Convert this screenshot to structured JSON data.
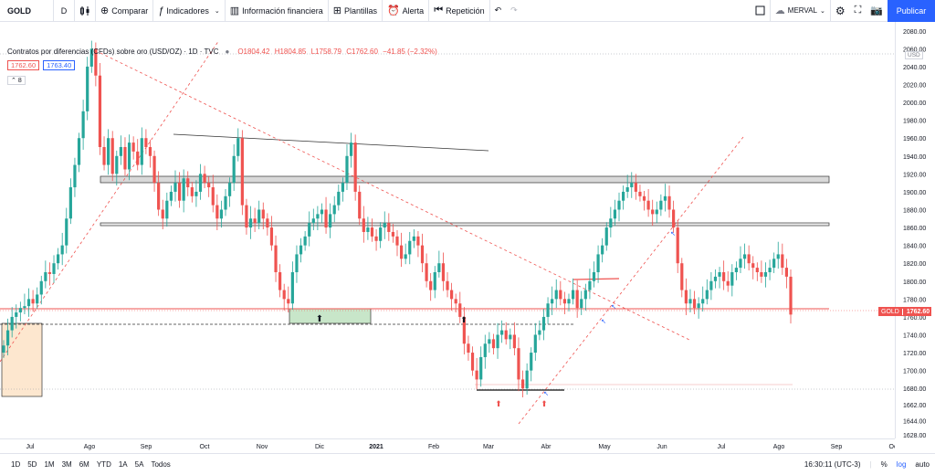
{
  "toolbar": {
    "symbol": "GOLD",
    "interval": "D",
    "compare": "Comparar",
    "indicators": "Indicadores",
    "financials": "Información financiera",
    "templates": "Plantillas",
    "alert": "Alerta",
    "replay": "Repetición",
    "layout_name": "MERVAL",
    "publish": "Publicar"
  },
  "legend": {
    "title": "Contratos por diferencias (CFDs) sobre oro (USD/OZ) · 1D · TVC",
    "open": "O1804.42",
    "high": "H1804.85",
    "low": "L1758.79",
    "close": "C1762.60",
    "change": "−41.85 (−2.32%)",
    "bid": "1762.60",
    "ask": "1763.40",
    "collapse": "8"
  },
  "price_axis": {
    "currency": "USD",
    "ticks": [
      "2080.00",
      "2060.00",
      "2040.00",
      "2020.00",
      "2000.00",
      "1980.00",
      "1960.00",
      "1940.00",
      "1920.00",
      "1900.00",
      "1880.00",
      "1860.00",
      "1840.00",
      "1820.00",
      "1800.00",
      "1780.00",
      "1760.00",
      "1740.00",
      "1720.00",
      "1700.00",
      "1680.00",
      "1662.00",
      "1644.00",
      "1628.00"
    ],
    "last_symbol": "GOLD",
    "last_price": "1762.60"
  },
  "time_axis": {
    "labels": [
      "Jul",
      "Ago",
      "Sep",
      "Oct",
      "Nov",
      "Dic",
      "2021",
      "Feb",
      "Mar",
      "Abr",
      "May",
      "Jun",
      "Jul",
      "Ago",
      "Sep",
      "Oc"
    ]
  },
  "bottom_bar": {
    "ranges": [
      "1D",
      "5D",
      "1M",
      "3M",
      "6M",
      "YTD",
      "1A",
      "5A",
      "Todos"
    ],
    "time": "16:30:11 (UTC-3)",
    "percent": "%",
    "log": "log",
    "auto": "auto"
  },
  "chart_data": {
    "type": "candlestick",
    "symbol": "GOLD",
    "y_range": [
      1624,
      2090
    ],
    "x_range": [
      "2020-06-17",
      "2021-10-05"
    ],
    "timeframe": "1D",
    "last_price": 1762.6,
    "ohlc_last": {
      "open": 1804.42,
      "high": 1804.85,
      "low": 1758.79,
      "close": 1762.6
    },
    "closes": [
      1728,
      1745,
      1760,
      1765,
      1770,
      1772,
      1780,
      1775,
      1785,
      1800,
      1810,
      1808,
      1820,
      1830,
      1840,
      1870,
      1905,
      1930,
      1960,
      1990,
      2040,
      2060,
      2030,
      1950,
      1930,
      1960,
      1920,
      1940,
      1950,
      1925,
      1955,
      1945,
      1930,
      1960,
      1950,
      1940,
      1910,
      1880,
      1870,
      1890,
      1900,
      1910,
      1890,
      1915,
      1905,
      1895,
      1900,
      1920,
      1910,
      1905,
      1885,
      1870,
      1880,
      1895,
      1910,
      1940,
      1960,
      1885,
      1860,
      1870,
      1865,
      1880,
      1870,
      1860,
      1840,
      1810,
      1790,
      1780,
      1775,
      1810,
      1830,
      1840,
      1850,
      1865,
      1870,
      1875,
      1880,
      1860,
      1875,
      1885,
      1900,
      1910,
      1940,
      1955,
      1900,
      1870,
      1855,
      1860,
      1850,
      1845,
      1860,
      1865,
      1855,
      1850,
      1840,
      1825,
      1830,
      1845,
      1850,
      1840,
      1820,
      1800,
      1790,
      1810,
      1820,
      1800,
      1790,
      1780,
      1775,
      1760,
      1730,
      1720,
      1700,
      1690,
      1715,
      1730,
      1735,
      1725,
      1740,
      1745,
      1735,
      1740,
      1725,
      1690,
      1680,
      1700,
      1720,
      1740,
      1745,
      1760,
      1775,
      1780,
      1790,
      1780,
      1775,
      1780,
      1790,
      1770,
      1780,
      1790,
      1800,
      1810,
      1830,
      1840,
      1860,
      1870,
      1880,
      1890,
      1900,
      1905,
      1910,
      1900,
      1895,
      1890,
      1880,
      1875,
      1880,
      1890,
      1895,
      1880,
      1860,
      1820,
      1790,
      1775,
      1780,
      1770,
      1775,
      1780,
      1790,
      1800,
      1805,
      1810,
      1800,
      1795,
      1810,
      1815,
      1825,
      1830,
      1820,
      1815,
      1810,
      1805,
      1810,
      1815,
      1825,
      1830,
      1815,
      1805,
      1762.6
    ],
    "horizontal_levels": [
      1762.6,
      1748,
      1676
    ],
    "zones": [
      {
        "kind": "resistance",
        "range": [
          1912,
          1920
        ]
      },
      {
        "kind": "support",
        "range": [
          1860,
          1862
        ]
      },
      {
        "kind": "demand",
        "range": [
          1748,
          1766
        ]
      },
      {
        "kind": "base",
        "range": [
          1672,
          1748
        ]
      }
    ]
  }
}
